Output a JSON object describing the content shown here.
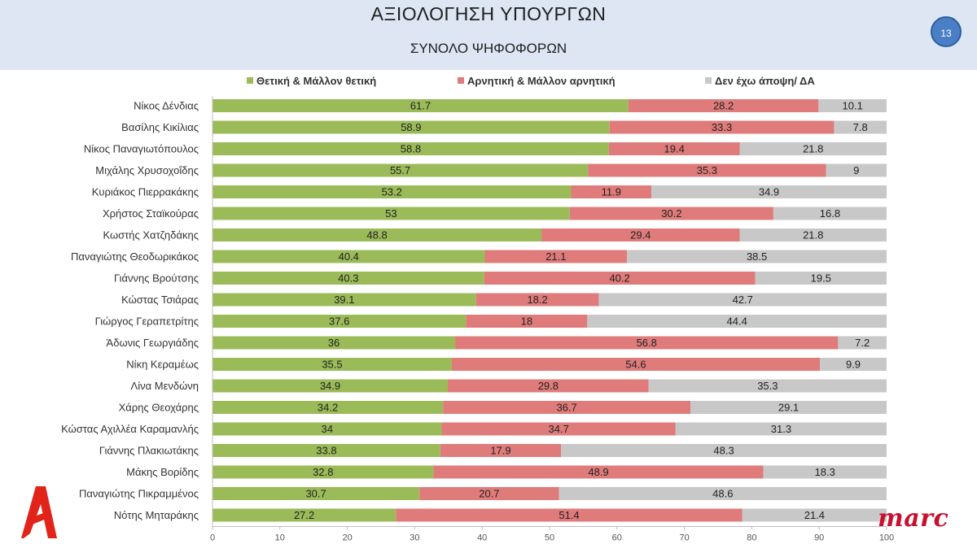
{
  "header": {
    "title": "ΑΞΙΟΛΟΓΗΣΗ ΥΠΟΥΡΓΩΝ",
    "subtitle": "ΣΥΝΟΛΟ ΨΗΦΟΦΟΡΩΝ",
    "page_number": "13"
  },
  "logos": {
    "alpha": "alpha-logo",
    "marc": "marc"
  },
  "chart_data": {
    "type": "bar",
    "orientation": "horizontal",
    "stacked": true,
    "title": "",
    "xlabel": "",
    "ylabel": "",
    "xlim": [
      0,
      100
    ],
    "x_ticks": [
      0,
      10,
      20,
      30,
      40,
      50,
      60,
      70,
      80,
      90,
      100
    ],
    "legend_position": "top",
    "grid": false,
    "categories": [
      "Νίκος Δένδιας",
      "Βασίλης Κικίλιας",
      "Νίκος Παναγιωτόπουλος",
      "Μιχάλης Χρυσοχοΐδης",
      "Κυριάκος Πιερρακάκης",
      "Χρήστος Σταϊκούρας",
      "Κωστής Χατζηδάκης",
      "Παναγιώτης Θεοδωρικάκος",
      "Γιάννης Βρούτσης",
      "Κώστας Τσιάρας",
      "Γιώργος Γεραπετρίτης",
      "Άδωνις Γεωργιάδης",
      "Νίκη Κεραμέως",
      "Λίνα Μενδώνη",
      "Χάρης Θεοχάρης",
      "Κώστας Αχιλλέα Καραμανλής",
      "Γιάννης Πλακιωτάκης",
      "Μάκης Βορίδης",
      "Παναγιώτης Πικραμμένος",
      "Νότης Μηταράκης"
    ],
    "series": [
      {
        "name": "Θετική & Μάλλον θετική",
        "color": "#9bbb59",
        "values": [
          61.7,
          58.9,
          58.8,
          55.7,
          53.2,
          53,
          48.8,
          40.4,
          40.3,
          39.1,
          37.6,
          36,
          35.5,
          34.9,
          34.2,
          34,
          33.8,
          32.8,
          30.7,
          27.2
        ]
      },
      {
        "name": "Αρνητική & Μάλλον αρνητική",
        "color": "#e07b7b",
        "values": [
          28.2,
          33.3,
          19.4,
          35.3,
          11.9,
          30.2,
          29.4,
          21.1,
          40.2,
          18.2,
          18,
          56.8,
          54.6,
          29.8,
          36.7,
          34.7,
          17.9,
          48.9,
          20.7,
          51.4
        ]
      },
      {
        "name": "Δεν έχω άποψη/ ΔΑ",
        "color": "#c8c8c8",
        "values": [
          10.1,
          7.8,
          21.8,
          9,
          34.9,
          16.8,
          21.8,
          38.5,
          19.5,
          42.7,
          44.4,
          7.2,
          9.9,
          35.3,
          29.1,
          31.3,
          48.3,
          18.3,
          48.6,
          21.4
        ]
      }
    ]
  }
}
